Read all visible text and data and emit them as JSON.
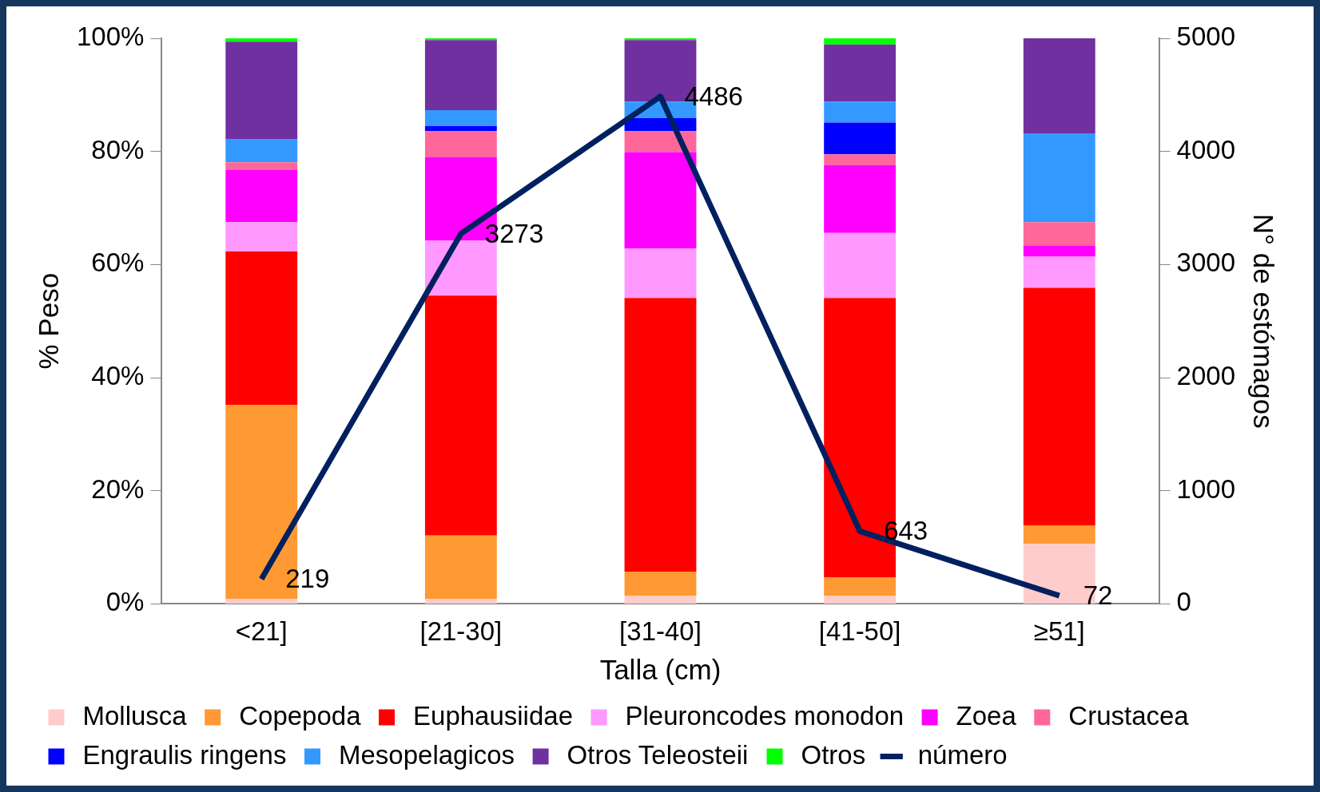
{
  "chart_data": {
    "type": "bar",
    "stacked": true,
    "xlabel": "Talla (cm)",
    "ylabel": "% Peso",
    "y2label": "N° de estómagos",
    "categories": [
      "<21]",
      "[21-30]",
      "[31-40]",
      "[41-50]",
      "≥51]"
    ],
    "ylim": [
      0,
      100
    ],
    "yticks": [
      {
        "value": 0,
        "label": "0%"
      },
      {
        "value": 20,
        "label": "20%"
      },
      {
        "value": 40,
        "label": "40%"
      },
      {
        "value": 60,
        "label": "60%"
      },
      {
        "value": 80,
        "label": "80%"
      },
      {
        "value": 100,
        "label": "100%"
      }
    ],
    "y2lim": [
      0,
      5000
    ],
    "y2ticks": [
      0,
      1000,
      2000,
      3000,
      4000,
      5000
    ],
    "grid": false,
    "legend": "bottom",
    "series": [
      {
        "name": "Mollusca",
        "color": "#ffcccc",
        "values": [
          0.9,
          0.9,
          1.4,
          1.4,
          10.6
        ]
      },
      {
        "name": "Copepoda",
        "color": "#ff9933",
        "values": [
          34.3,
          11.2,
          4.3,
          3.3,
          3.3
        ]
      },
      {
        "name": "Euphausiidae",
        "color": "#ff0000",
        "values": [
          27.1,
          42.4,
          48.4,
          49.4,
          42.0
        ]
      },
      {
        "name": "Pleuroncodes monodon",
        "color": "#ff99ff",
        "values": [
          5.2,
          9.7,
          8.7,
          11.5,
          5.5
        ]
      },
      {
        "name": "Zoea",
        "color": "#ff00ff",
        "values": [
          9.2,
          14.8,
          17.1,
          12.0,
          1.9
        ]
      },
      {
        "name": "Crustacea",
        "color": "#ff6699",
        "values": [
          1.4,
          4.6,
          3.7,
          1.9,
          4.2
        ]
      },
      {
        "name": "Engraulis ringens",
        "color": "#0000ff",
        "values": [
          0,
          0.9,
          2.3,
          5.6,
          0
        ]
      },
      {
        "name": "Mesopelagicos",
        "color": "#3399ff",
        "values": [
          4.1,
          2.8,
          2.9,
          3.7,
          15.7
        ]
      },
      {
        "name": "Otros Teleosteii",
        "color": "#7030a0",
        "values": [
          17.2,
          12.4,
          10.9,
          10.1,
          16.8
        ]
      },
      {
        "name": "Otros",
        "color": "#00ff00",
        "values": [
          0.6,
          0.3,
          0.3,
          1.1,
          0
        ]
      },
      {
        "name": "número",
        "type": "line",
        "axis": "y2",
        "color": "#002060",
        "values": [
          219,
          3273,
          4486,
          643,
          72
        ],
        "value_labels": [
          "219",
          "3273",
          "4486",
          "643",
          "72"
        ]
      }
    ]
  }
}
